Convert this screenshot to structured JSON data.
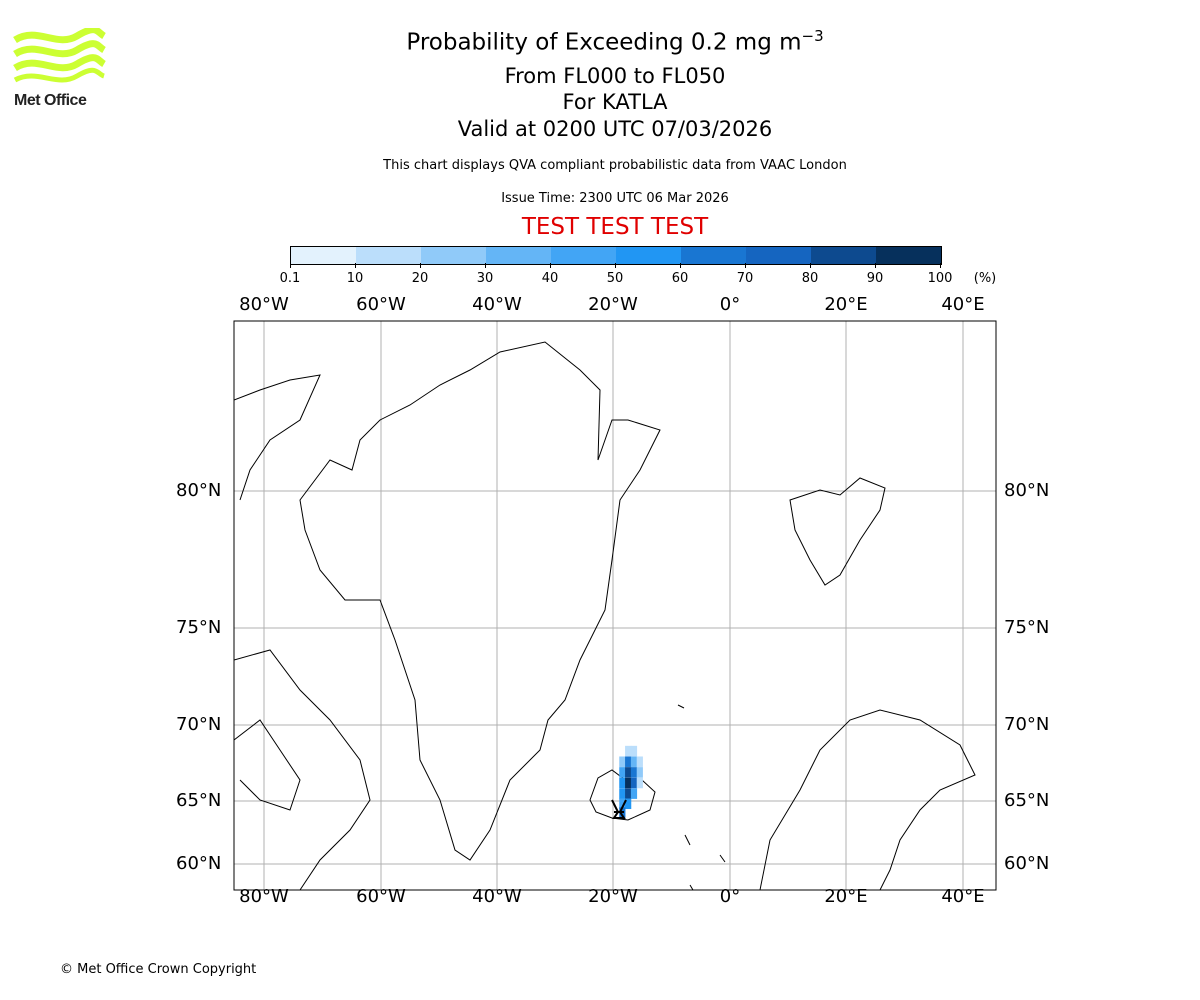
{
  "logo": {
    "text": "Met Office",
    "color": "#ccff33"
  },
  "title": {
    "line1": "Probability of Exceeding 0.2 mg m",
    "line1_sup": "−3",
    "line2": "From FL000 to FL050",
    "line3": "For KATLA",
    "line4": "Valid at 0200 UTC 07/03/2026"
  },
  "subtitle": "This chart displays QVA compliant probabilistic data from VAAC London",
  "issue_time": "Issue Time: 2300 UTC 06 Mar 2026",
  "test_banner": "TEST TEST TEST",
  "colorbar": {
    "ticks": [
      "0.1",
      "10",
      "20",
      "30",
      "40",
      "50",
      "60",
      "70",
      "80",
      "90",
      "100"
    ],
    "unit": "(%)",
    "colors": [
      "#e3f2fd",
      "#bbdefb",
      "#90caf9",
      "#64b5f6",
      "#42a5f5",
      "#2196f3",
      "#1976d2",
      "#1565c0",
      "#0d4a8f",
      "#06305c"
    ]
  },
  "map": {
    "lon_labels": [
      "80°W",
      "60°W",
      "40°W",
      "20°W",
      "0°",
      "20°E",
      "40°E"
    ],
    "lat_labels": [
      "80°N",
      "75°N",
      "70°N",
      "65°N",
      "60°N"
    ],
    "volcano": {
      "name": "KATLA",
      "lat": 63.6,
      "lon": -19.1
    },
    "plume": [
      {
        "lon": -17.5,
        "lat": 68.3,
        "prob": 15
      },
      {
        "lon": -16.5,
        "lat": 68.3,
        "prob": 10
      },
      {
        "lon": -18.5,
        "lat": 67.6,
        "prob": 25
      },
      {
        "lon": -17.5,
        "lat": 67.6,
        "prob": 60
      },
      {
        "lon": -16.5,
        "lat": 67.6,
        "prob": 35
      },
      {
        "lon": -15.5,
        "lat": 67.6,
        "prob": 15
      },
      {
        "lon": -18.5,
        "lat": 66.9,
        "prob": 40
      },
      {
        "lon": -17.5,
        "lat": 66.9,
        "prob": 85
      },
      {
        "lon": -16.5,
        "lat": 66.9,
        "prob": 65
      },
      {
        "lon": -15.5,
        "lat": 66.9,
        "prob": 20
      },
      {
        "lon": -18.5,
        "lat": 66.2,
        "prob": 55
      },
      {
        "lon": -17.5,
        "lat": 66.2,
        "prob": 95
      },
      {
        "lon": -16.5,
        "lat": 66.2,
        "prob": 70
      },
      {
        "lon": -15.5,
        "lat": 66.2,
        "prob": 15
      },
      {
        "lon": -18.5,
        "lat": 65.5,
        "prob": 50
      },
      {
        "lon": -17.5,
        "lat": 65.5,
        "prob": 80
      },
      {
        "lon": -16.5,
        "lat": 65.5,
        "prob": 45
      },
      {
        "lon": -18.5,
        "lat": 64.8,
        "prob": 40
      },
      {
        "lon": -17.5,
        "lat": 64.8,
        "prob": 55
      },
      {
        "lon": -18.5,
        "lat": 64.1,
        "prob": 65
      }
    ]
  },
  "copyright": "© Met Office Crown Copyright"
}
